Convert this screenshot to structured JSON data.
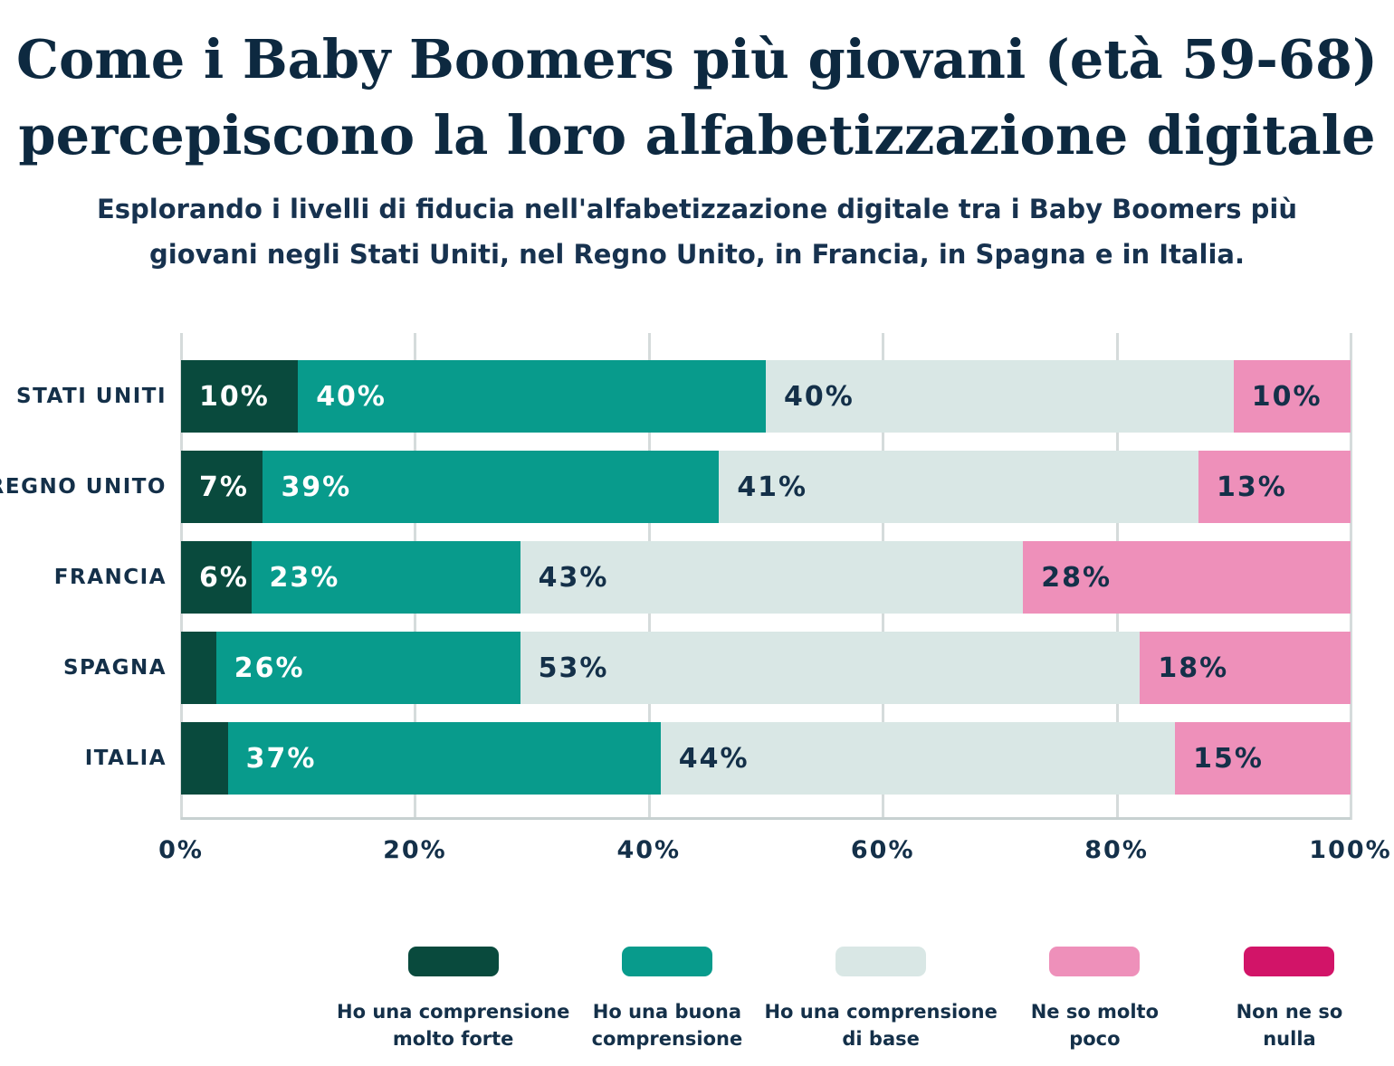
{
  "page": {
    "title_lines": [
      "Come i Baby Boomers più giovani (età 59-68)",
      "percepiscono la loro alfabetizzazione digitale"
    ],
    "subtitle_lines": [
      "Esplorando i livelli di fiducia nell'alfabetizzazione digitale tra i Baby Boomers più",
      "giovani negli Stati Uniti, nel Regno Unito, in Francia, in Spagna e in Italia."
    ]
  },
  "colors": {
    "background": "#ffffff",
    "title_text": "#0d2940",
    "body_text": "#143049",
    "gridline": "#d5dbdb",
    "axis_line": "#c7d1d1"
  },
  "chart_data": {
    "type": "bar",
    "orientation": "horizontal",
    "stacked": true,
    "unit": "%",
    "categories": [
      "STATI UNITI",
      "REGNO UNITO",
      "FRANCIA",
      "SPAGNA",
      "ITALIA"
    ],
    "series": [
      {
        "name": "Ho una comprensione molto forte",
        "legend_lines": [
          "Ho una comprensione",
          "molto forte"
        ],
        "color": "#094a3d",
        "label_color": "#ffffff",
        "values": [
          10,
          7,
          6,
          3,
          4
        ]
      },
      {
        "name": "Ho una buona comprensione",
        "legend_lines": [
          "Ho una buona",
          "comprensione"
        ],
        "color": "#089b8c",
        "label_color": "#ffffff",
        "values": [
          40,
          39,
          23,
          26,
          37
        ]
      },
      {
        "name": "Ho una comprensione di base",
        "legend_lines": [
          "Ho una comprensione",
          "di base"
        ],
        "color": "#d9e7e5",
        "label_color": "#143049",
        "values": [
          40,
          41,
          43,
          53,
          44
        ]
      },
      {
        "name": "Ne so molto poco",
        "legend_lines": [
          "Ne so molto",
          "poco"
        ],
        "color": "#ee90ba",
        "label_color": "#143049",
        "values": [
          10,
          13,
          28,
          18,
          15
        ]
      },
      {
        "name": "Non ne so nulla",
        "legend_lines": [
          "Non ne so",
          "nulla"
        ],
        "color": "#d21468",
        "label_color": "#ffffff",
        "values": [
          0,
          0,
          0,
          0,
          0
        ]
      }
    ],
    "x_ticks": [
      "0%",
      "20%",
      "40%",
      "60%",
      "80%",
      "100%"
    ],
    "xlim": [
      0,
      100
    ],
    "min_label_value": 5,
    "grid": true,
    "legend_position": "bottom"
  }
}
